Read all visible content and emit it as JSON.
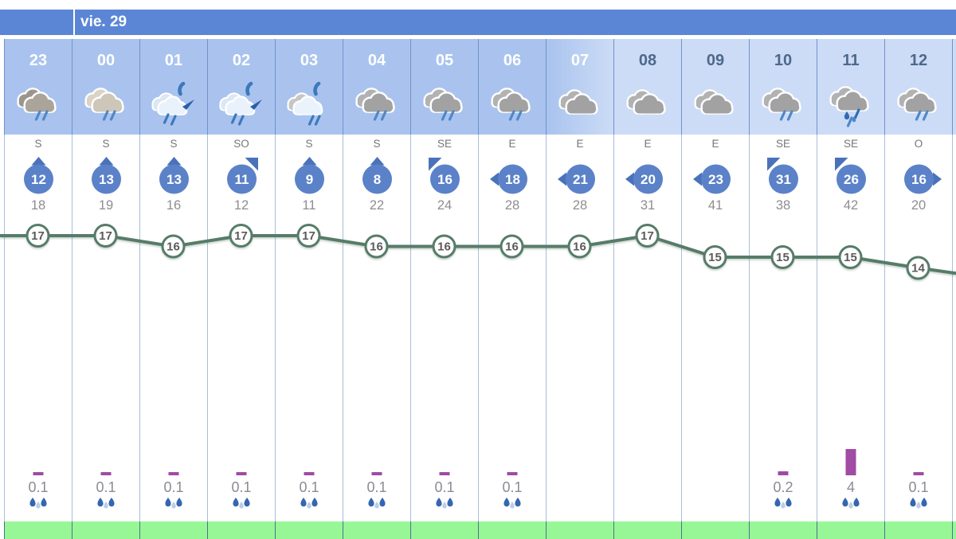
{
  "header": {
    "day_label": "vie. 29"
  },
  "chart_data": {
    "type": "line",
    "title": "Hourly weather meteogram",
    "categories": [
      "23",
      "00",
      "01",
      "02",
      "03",
      "04",
      "05",
      "06",
      "07",
      "08",
      "09",
      "10",
      "11",
      "12"
    ],
    "day_periods": [
      "night",
      "night",
      "night",
      "night",
      "night",
      "night",
      "night",
      "night",
      "dawn",
      "day",
      "day",
      "day",
      "day",
      "day"
    ],
    "series": [
      {
        "name": "wind_direction",
        "values": [
          "S",
          "S",
          "S",
          "SO",
          "S",
          "S",
          "SE",
          "E",
          "E",
          "E",
          "E",
          "SE",
          "SE",
          "O"
        ]
      },
      {
        "name": "wind_speed_kmh",
        "values": [
          12,
          13,
          13,
          11,
          9,
          8,
          16,
          18,
          21,
          20,
          23,
          31,
          26,
          16
        ]
      },
      {
        "name": "wind_gust_kmh",
        "values": [
          18,
          19,
          16,
          12,
          11,
          22,
          24,
          28,
          28,
          31,
          41,
          38,
          42,
          20
        ]
      },
      {
        "name": "temperature_c",
        "values": [
          17,
          17,
          16,
          17,
          17,
          16,
          16,
          16,
          16,
          17,
          15,
          15,
          15,
          14
        ]
      },
      {
        "name": "precipitation_mm",
        "values": [
          0.1,
          0.1,
          0.1,
          0.1,
          0.1,
          0.1,
          0.1,
          0.1,
          null,
          null,
          null,
          0.2,
          4,
          0.1
        ]
      },
      {
        "name": "weather_icon",
        "values": [
          "clouds-rain-dark",
          "clouds-rain-beige",
          "night-showers-wind",
          "night-showers-wind",
          "night-showers",
          "clouds-drizzle",
          "clouds-drizzle",
          "clouds-drizzle",
          "clouds",
          "clouds",
          "clouds",
          "clouds-drizzle",
          "clouds-rain",
          "clouds-drizzle"
        ]
      }
    ],
    "temp_axis_visible_range": [
      13,
      18
    ],
    "grid": "vertical-hour-columns",
    "legend_position": "none"
  },
  "colors": {
    "header_blue": "#5b86d5",
    "night_band": "#a9c3ee",
    "day_band": "#ccdcf6",
    "wind_circle_blue": "#5b82c8",
    "wind_arrow_blue": "#4a72ba",
    "temp_line_green": "#567c68",
    "precip_purple": "#a04ba4",
    "precip_text_grey": "#8b8b95",
    "ground_green": "#97f797",
    "rain_drop_dark": "#3566b0",
    "rain_drop_light": "#b9cfe8"
  }
}
